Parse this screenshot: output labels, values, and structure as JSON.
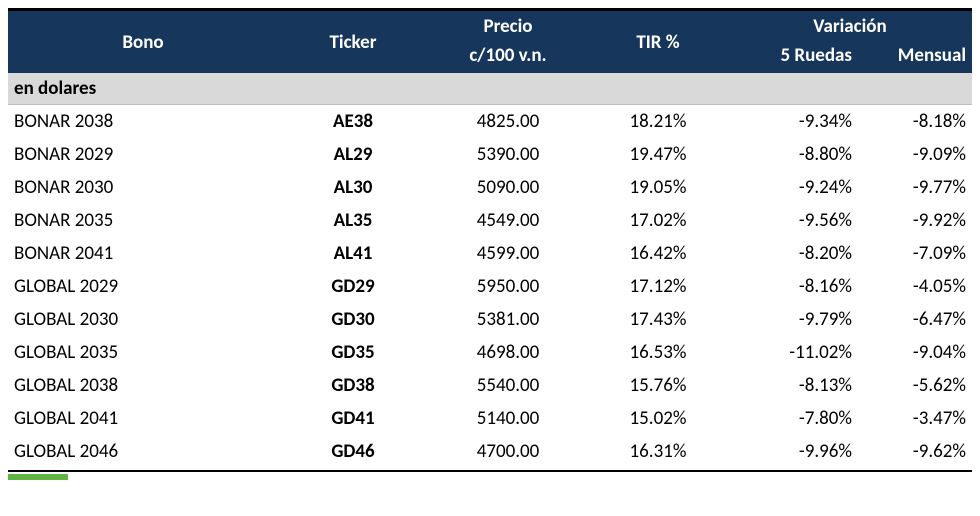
{
  "table": {
    "header": {
      "bono": "Bono",
      "ticker": "Ticker",
      "precio_line1": "Precio",
      "precio_line2": "c/100 v.n.",
      "tir": "TIR %",
      "variacion": "Variación",
      "ruedas5": "5 Ruedas",
      "mensual": "Mensual"
    },
    "section_label": "en dolares",
    "columns": [
      "bono",
      "ticker",
      "precio",
      "tir",
      "r5",
      "mes"
    ],
    "column_align": [
      "left",
      "center",
      "center",
      "center",
      "right",
      "right"
    ],
    "rows": [
      {
        "bono": "BONAR 2038",
        "ticker": "AE38",
        "precio": "4825.00",
        "tir": "18.21%",
        "r5": "-9.34%",
        "mes": "-8.18%"
      },
      {
        "bono": "BONAR 2029",
        "ticker": "AL29",
        "precio": "5390.00",
        "tir": "19.47%",
        "r5": "-8.80%",
        "mes": "-9.09%"
      },
      {
        "bono": "BONAR 2030",
        "ticker": "AL30",
        "precio": "5090.00",
        "tir": "19.05%",
        "r5": "-9.24%",
        "mes": "-9.77%"
      },
      {
        "bono": "BONAR 2035",
        "ticker": "AL35",
        "precio": "4549.00",
        "tir": "17.02%",
        "r5": "-9.56%",
        "mes": "-9.92%"
      },
      {
        "bono": "BONAR 2041",
        "ticker": "AL41",
        "precio": "4599.00",
        "tir": "16.42%",
        "r5": "-8.20%",
        "mes": "-7.09%"
      },
      {
        "bono": "GLOBAL 2029",
        "ticker": "GD29",
        "precio": "5950.00",
        "tir": "17.12%",
        "r5": "-8.16%",
        "mes": "-4.05%"
      },
      {
        "bono": "GLOBAL 2030",
        "ticker": "GD30",
        "precio": "5381.00",
        "tir": "17.43%",
        "r5": "-9.79%",
        "mes": "-6.47%"
      },
      {
        "bono": "GLOBAL 2035",
        "ticker": "GD35",
        "precio": "4698.00",
        "tir": "16.53%",
        "r5": "-11.02%",
        "mes": "-9.04%"
      },
      {
        "bono": "GLOBAL 2038",
        "ticker": "GD38",
        "precio": "5540.00",
        "tir": "15.76%",
        "r5": "-8.13%",
        "mes": "-5.62%"
      },
      {
        "bono": "GLOBAL 2041",
        "ticker": "GD41",
        "precio": "5140.00",
        "tir": "15.02%",
        "r5": "-7.80%",
        "mes": "-3.47%"
      },
      {
        "bono": "GLOBAL 2046",
        "ticker": "GD46",
        "precio": "4700.00",
        "tir": "16.31%",
        "r5": "-9.96%",
        "mes": "-9.62%"
      }
    ],
    "styling": {
      "header_bg": "#16365c",
      "header_fg": "#ffffff",
      "section_bg": "#d9d9d9",
      "row_bg": "#ffffff",
      "text_color": "#000000",
      "top_border_color": "#000000",
      "font_family": "Calibri",
      "header_fontsize_pt": 14,
      "body_fontsize_pt": 14,
      "ticker_weight": "bold",
      "accent_green": "#5fb53f"
    }
  }
}
